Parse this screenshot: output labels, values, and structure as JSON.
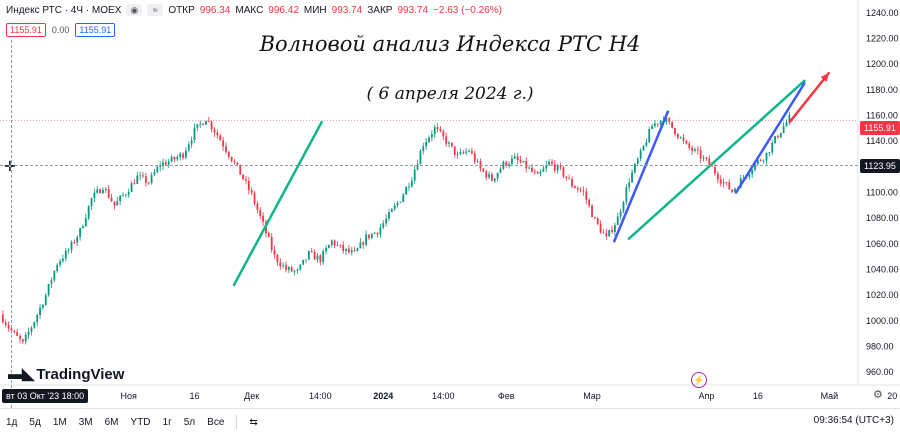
{
  "legend": {
    "symbol": "Индекс РТС · 4Ч · MOEX",
    "open_label": "ОТКР",
    "open": "996.34",
    "high_label": "МАКС",
    "high": "996.42",
    "low_label": "МИН",
    "low": "993.74",
    "close_label": "ЗАКР",
    "close": "993.74",
    "change": "−2.63 (−0.26%)",
    "sell": "1155.91",
    "spread": "0.00",
    "buy": "1155.91"
  },
  "title": "Волновой анализ Индекса РТС H4",
  "subtitle": "( 6 апреля 2024 г.)",
  "brand": "TradingView",
  "date_badge": "вт 03 Окт '23   18:00",
  "price_tags": {
    "last": "1155.91",
    "crosshair": "1123.95"
  },
  "timeframes": [
    "1д",
    "5д",
    "1М",
    "3М",
    "6М",
    "YTD",
    "1г",
    "5л",
    "Все"
  ],
  "clock": "09:36:54 (UTC+3)",
  "colors": {
    "up": "#089981",
    "down": "#f23645",
    "green_line": "#0db58a",
    "blue_line": "#3d5afe",
    "red_arrow": "#f23645"
  },
  "chart_data": {
    "type": "candlestick",
    "ylim": [
      950,
      1250
    ],
    "y_ticks": [
      960,
      980,
      1000,
      1020,
      1040,
      1060,
      1080,
      1100,
      1120,
      1140,
      1160,
      1180,
      1200,
      1220,
      1240
    ],
    "x_ticks": [
      "Ноя",
      "16",
      "Дек",
      "14:00",
      "2024",
      "14:00",
      "Фев",
      "Мар",
      "Апр",
      "16",
      "Май",
      "20"
    ],
    "close_path": [
      [
        0,
        1005
      ],
      [
        4,
        992
      ],
      [
        8,
        982
      ],
      [
        12,
        1000
      ],
      [
        16,
        1020
      ],
      [
        20,
        1045
      ],
      [
        24,
        1055
      ],
      [
        28,
        1070
      ],
      [
        32,
        1095
      ],
      [
        36,
        1105
      ],
      [
        40,
        1090
      ],
      [
        44,
        1100
      ],
      [
        48,
        1112
      ],
      [
        52,
        1108
      ],
      [
        56,
        1122
      ],
      [
        60,
        1125
      ],
      [
        64,
        1130
      ],
      [
        68,
        1148
      ],
      [
        72,
        1158
      ],
      [
        76,
        1145
      ],
      [
        80,
        1130
      ],
      [
        84,
        1115
      ],
      [
        88,
        1098
      ],
      [
        92,
        1075
      ],
      [
        96,
        1050
      ],
      [
        100,
        1040
      ],
      [
        104,
        1038
      ],
      [
        108,
        1052
      ],
      [
        112,
        1048
      ],
      [
        116,
        1062
      ],
      [
        120,
        1055
      ],
      [
        124,
        1052
      ],
      [
        128,
        1065
      ],
      [
        132,
        1070
      ],
      [
        136,
        1082
      ],
      [
        140,
        1095
      ],
      [
        144,
        1112
      ],
      [
        148,
        1138
      ],
      [
        152,
        1150
      ],
      [
        156,
        1140
      ],
      [
        160,
        1128
      ],
      [
        164,
        1133
      ],
      [
        168,
        1118
      ],
      [
        172,
        1110
      ],
      [
        176,
        1122
      ],
      [
        180,
        1126
      ],
      [
        184,
        1120
      ],
      [
        188,
        1112
      ],
      [
        192,
        1123
      ],
      [
        196,
        1117
      ],
      [
        200,
        1106
      ],
      [
        204,
        1100
      ],
      [
        208,
        1078
      ],
      [
        212,
        1064
      ],
      [
        216,
        1080
      ],
      [
        220,
        1110
      ],
      [
        224,
        1130
      ],
      [
        228,
        1152
      ],
      [
        232,
        1158
      ],
      [
        236,
        1148
      ],
      [
        240,
        1136
      ],
      [
        244,
        1130
      ],
      [
        248,
        1122
      ],
      [
        252,
        1110
      ],
      [
        256,
        1101
      ],
      [
        260,
        1112
      ],
      [
        264,
        1122
      ],
      [
        268,
        1130
      ],
      [
        272,
        1145
      ],
      [
        276,
        1158
      ]
    ],
    "wave_lines": [
      {
        "color": "green",
        "from": [
          48,
          1028
        ],
        "to": [
          66,
          1155
        ]
      },
      {
        "color": "green",
        "from": [
          129,
          1064
        ],
        "to": [
          165,
          1187
        ]
      },
      {
        "color": "blue",
        "from": [
          126,
          1062
        ],
        "to": [
          137,
          1163
        ]
      },
      {
        "color": "blue",
        "from": [
          151,
          1100
        ],
        "to": [
          165,
          1185
        ]
      },
      {
        "color": "red",
        "from": [
          162,
          1155
        ],
        "to": [
          170,
          1193
        ]
      }
    ],
    "horizontal_lines": [
      1155.91,
      1123.95
    ]
  }
}
